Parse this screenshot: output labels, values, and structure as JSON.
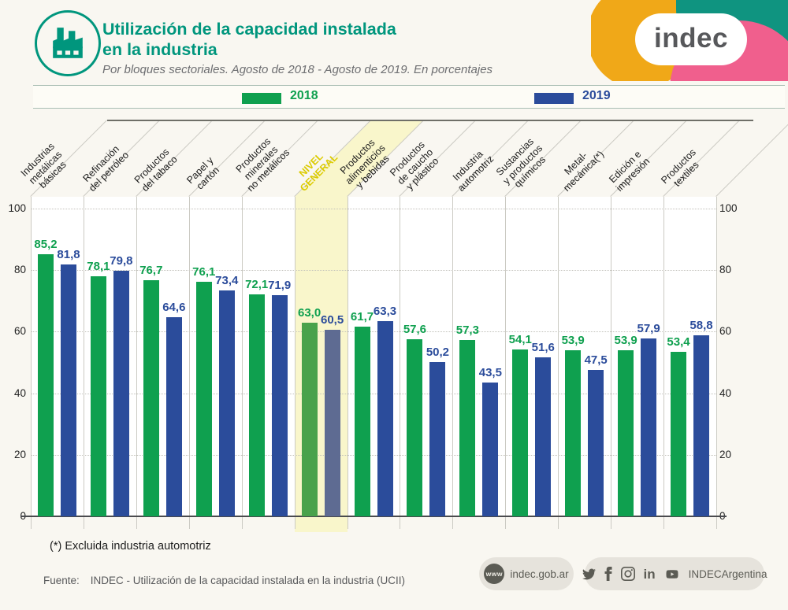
{
  "header": {
    "title_line1": "Utilización de la capacidad instalada",
    "title_line2": "en la industria",
    "subtitle": "Por bloques sectoriales. Agosto de 2018 - Agosto de 2019. En porcentajes"
  },
  "logo": {
    "text": "indec"
  },
  "legend": {
    "items": [
      {
        "label": "2018",
        "color": "#0FA04F"
      },
      {
        "label": "2019",
        "color": "#2B4C9B"
      }
    ]
  },
  "chart_data": {
    "type": "bar",
    "title": "Utilización de la capacidad instalada en la industria",
    "subtitle": "Por bloques sectoriales. Agosto de 2018 - Agosto de 2019. En porcentajes",
    "categories": [
      "Industrias\nmetálicas\nbásicas",
      "Refinación\ndel petróleo",
      "Productos\ndel tabaco",
      "Papel y\ncartón",
      "Productos\nminerales\nno metálicos",
      "NIVEL\nGENERAL",
      "Productos\nalimenticios\ny bebidas",
      "Productos\nde caucho\ny plástico",
      "Industria\nautomotriz",
      "Sustancias\ny productos\nquímicos",
      "Metal-\nmecánica(*)",
      "Edición e\nimpresión",
      "Productos\ntextiles"
    ],
    "series": [
      {
        "name": "2018",
        "color": "#0FA04F",
        "values": [
          85.2,
          78.1,
          76.7,
          76.1,
          72.1,
          63.0,
          61.7,
          57.6,
          57.3,
          54.1,
          53.9,
          53.9,
          53.4
        ]
      },
      {
        "name": "2019",
        "color": "#2B4C9B",
        "values": [
          81.8,
          79.8,
          64.6,
          73.4,
          71.9,
          60.5,
          63.3,
          50.2,
          43.5,
          51.6,
          47.5,
          57.9,
          58.8
        ]
      }
    ],
    "highlight_index": 5,
    "highlight_color": "#F9F6CB",
    "highlight_label_color": "#DCCB00",
    "muted_colors": {
      "2018": "#49A24B",
      "2019": "#5E6B92"
    },
    "yticks": [
      0,
      20,
      40,
      60,
      80,
      100
    ],
    "ylim": [
      0,
      100
    ],
    "xlabel": "",
    "ylabel": "",
    "grid": "horizontal-dotted",
    "y_axis_sides": [
      "left",
      "right"
    ],
    "legend_position": "top",
    "decimal_separator": ","
  },
  "footnote": "(*) Excluida industria automotriz",
  "source": {
    "label": "Fuente:",
    "text": "INDEC - Utilización de la capacidad instalada en la industria (UCII)"
  },
  "footer": {
    "www_label": "www",
    "website": "indec.gob.ar",
    "social_handle": "INDECArgentina",
    "icons": [
      "twitter-icon",
      "facebook-icon",
      "instagram-icon",
      "linkedin-icon",
      "youtube-icon"
    ]
  }
}
